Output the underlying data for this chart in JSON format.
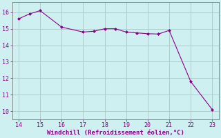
{
  "x": [
    14,
    14.5,
    15,
    16,
    17,
    17.5,
    18,
    18.5,
    19,
    19.5,
    20,
    20.5,
    21,
    22,
    23
  ],
  "y": [
    15.6,
    15.9,
    16.1,
    15.1,
    14.8,
    14.85,
    15.0,
    15.0,
    14.8,
    14.75,
    14.7,
    14.68,
    14.9,
    11.8,
    10.1
  ],
  "line_color": "#880088",
  "marker_color": "#880088",
  "bg_color": "#cff0f0",
  "grid_color": "#b0cccc",
  "axis_color": "#777777",
  "tick_color": "#880088",
  "xlabel": "Windchill (Refroidissement éolien,°C)",
  "xlabel_color": "#880088",
  "xlim": [
    13.7,
    23.3
  ],
  "ylim": [
    9.5,
    16.6
  ],
  "xticks": [
    14,
    15,
    16,
    17,
    18,
    19,
    20,
    21,
    22,
    23
  ],
  "yticks": [
    10,
    11,
    12,
    13,
    14,
    15,
    16
  ]
}
